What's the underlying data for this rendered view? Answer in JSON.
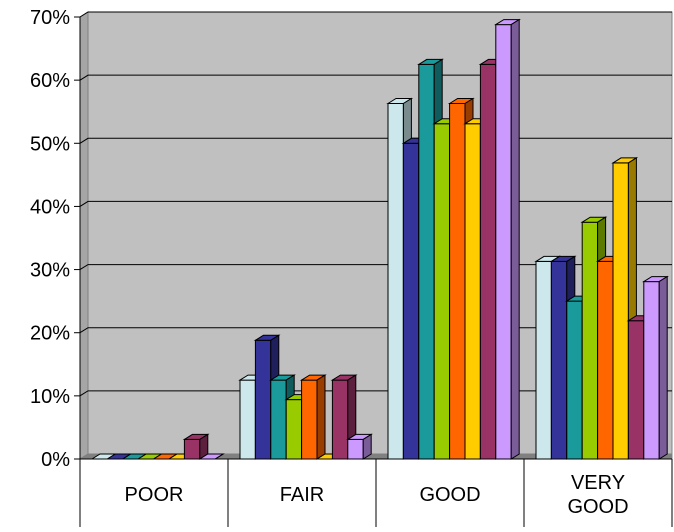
{
  "chart_data": {
    "type": "bar",
    "style": "3d-clustered-column",
    "categories": [
      "POOR",
      "FAIR",
      "GOOD",
      "VERY GOOD"
    ],
    "category_lines": [
      [
        "POOR"
      ],
      [
        "FAIR"
      ],
      [
        "GOOD"
      ],
      [
        "VERY",
        "GOOD"
      ]
    ],
    "y_ticks": [
      "0%",
      "10%",
      "20%",
      "30%",
      "40%",
      "50%",
      "60%",
      "70%"
    ],
    "ylim": [
      0,
      70
    ],
    "grid": true,
    "legend": "none",
    "plot_background": "#c0c0c0",
    "series": [
      {
        "color": "#cce8ec",
        "values": [
          0,
          12.5,
          56.3,
          31.3
        ]
      },
      {
        "color": "#333399",
        "values": [
          0,
          18.8,
          50.0,
          31.3
        ]
      },
      {
        "color": "#1a9a9a",
        "values": [
          0,
          12.5,
          62.5,
          25.0
        ]
      },
      {
        "color": "#99cc00",
        "values": [
          0,
          9.4,
          53.1,
          37.5
        ]
      },
      {
        "color": "#ff6600",
        "values": [
          0,
          12.5,
          56.3,
          31.3
        ]
      },
      {
        "color": "#ffcc00",
        "values": [
          0,
          0,
          53.1,
          46.9
        ]
      },
      {
        "color": "#993366",
        "values": [
          3.1,
          12.5,
          62.5,
          21.9
        ]
      },
      {
        "color": "#cc99ff",
        "values": [
          0,
          3.1,
          68.8,
          28.1
        ]
      }
    ]
  }
}
